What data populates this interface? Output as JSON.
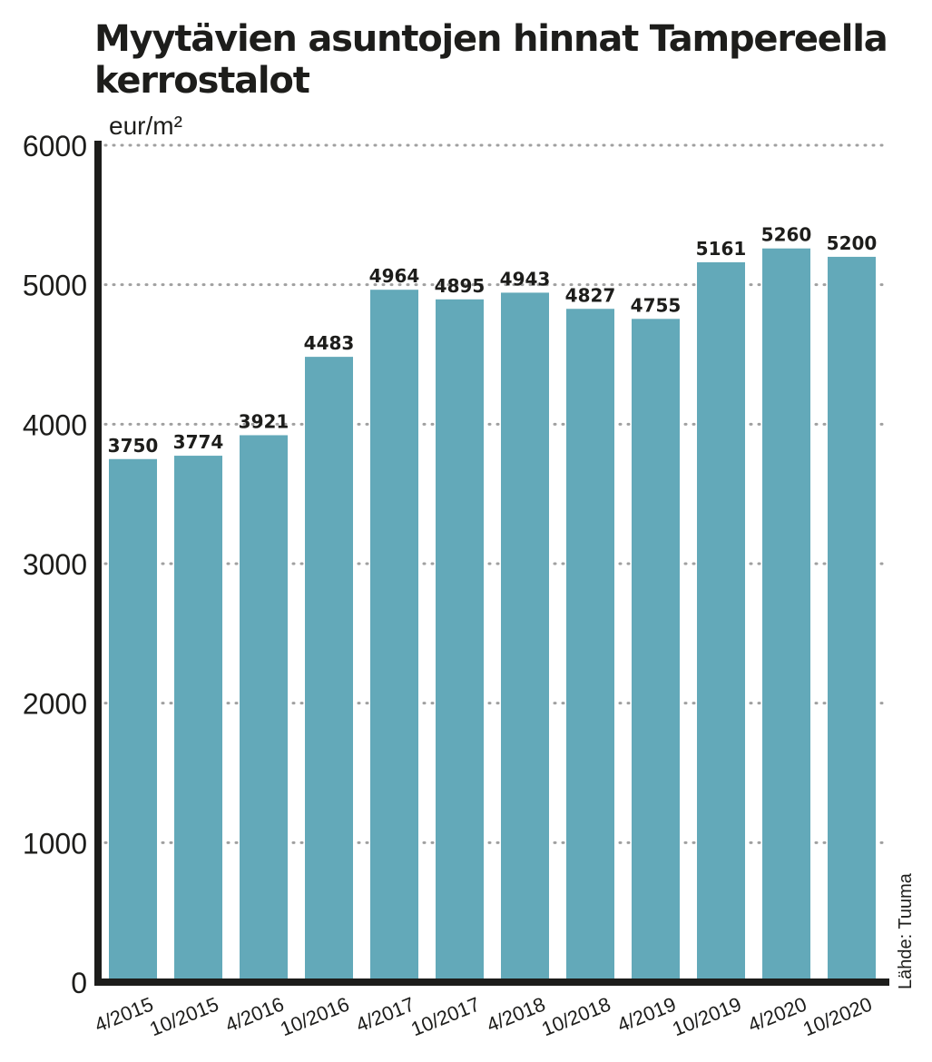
{
  "chart_data": {
    "type": "bar",
    "title": "Myytävien asuntojen hinnat Tampereella",
    "subtitle": "kerrostalot",
    "ylabel": "eur/m²",
    "xlabel": "",
    "ylim": [
      0,
      6000
    ],
    "yticks": [
      "0",
      "1000",
      "2000",
      "3000",
      "4000",
      "5000",
      "6000"
    ],
    "categories": [
      "4/2015",
      "10/2015",
      "4/2016",
      "10/2016",
      "4/2017",
      "10/2017",
      "4/2018",
      "10/2018",
      "4/2019",
      "10/2019",
      "4/2020",
      "10/2020"
    ],
    "values": [
      3750,
      3774,
      3921,
      4483,
      4964,
      4895,
      4943,
      4827,
      4755,
      5161,
      5260,
      5200
    ],
    "source": "Lähde: Tuuma",
    "grid": "horizontal dotted",
    "colors": {
      "bar": "#63a9b9",
      "text": "#1d1d1b",
      "axis": "#1d1d1b",
      "grid": "#a0a0a0"
    }
  }
}
